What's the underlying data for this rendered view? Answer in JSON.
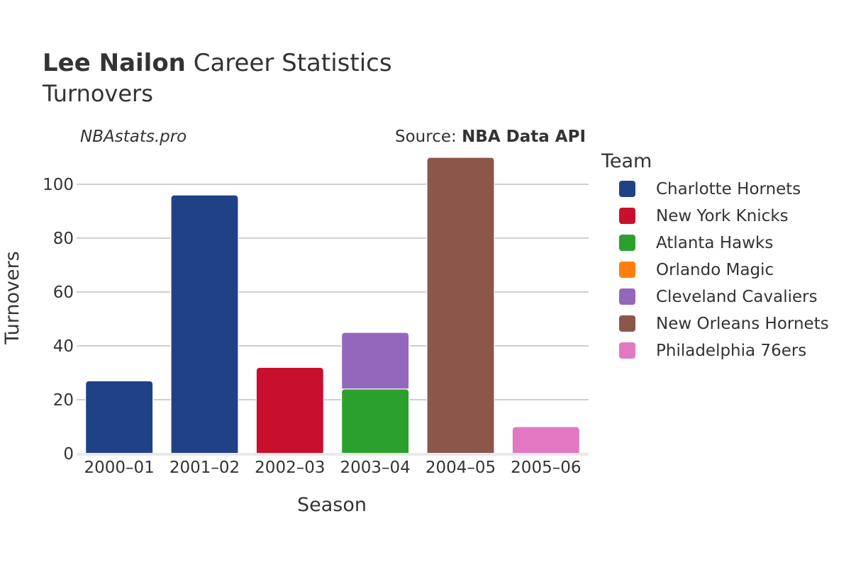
{
  "header": {
    "title_bold": "Lee Nailon",
    "title_rest": " Career Statistics",
    "subtitle": "Turnovers"
  },
  "credits": {
    "site": "NBAstats.pro",
    "source_prefix": "Source: ",
    "source_name": "NBA Data API"
  },
  "chart_data": {
    "type": "bar",
    "stacked": true,
    "title": "Lee Nailon Career Statistics",
    "subtitle": "Turnovers",
    "xlabel": "Season",
    "ylabel": "Turnovers",
    "categories": [
      "2000–01",
      "2001–02",
      "2002–03",
      "2003–04",
      "2004–05",
      "2005–06"
    ],
    "ylim": [
      0,
      110
    ],
    "yticks": [
      0,
      20,
      40,
      60,
      80,
      100
    ],
    "grid": true,
    "legend_title": "Team",
    "legend_position": "right",
    "series": [
      {
        "name": "Charlotte Hornets",
        "color": "#1f4287",
        "values": [
          27,
          96,
          null,
          null,
          null,
          null
        ]
      },
      {
        "name": "New York Knicks",
        "color": "#c8102e",
        "values": [
          null,
          null,
          32,
          null,
          null,
          null
        ]
      },
      {
        "name": "Atlanta Hawks",
        "color": "#2ca02c",
        "values": [
          null,
          null,
          null,
          24,
          null,
          null
        ]
      },
      {
        "name": "Orlando Magic",
        "color": "#ff7f0e",
        "values": [
          null,
          null,
          null,
          null,
          null,
          null
        ]
      },
      {
        "name": "Cleveland Cavaliers",
        "color": "#9467bd",
        "values": [
          null,
          null,
          null,
          21,
          null,
          null
        ]
      },
      {
        "name": "New Orleans Hornets",
        "color": "#8c564b",
        "values": [
          null,
          null,
          null,
          null,
          110,
          null
        ]
      },
      {
        "name": "Philadelphia 76ers",
        "color": "#e377c2",
        "values": [
          null,
          null,
          null,
          null,
          null,
          10
        ]
      }
    ]
  }
}
